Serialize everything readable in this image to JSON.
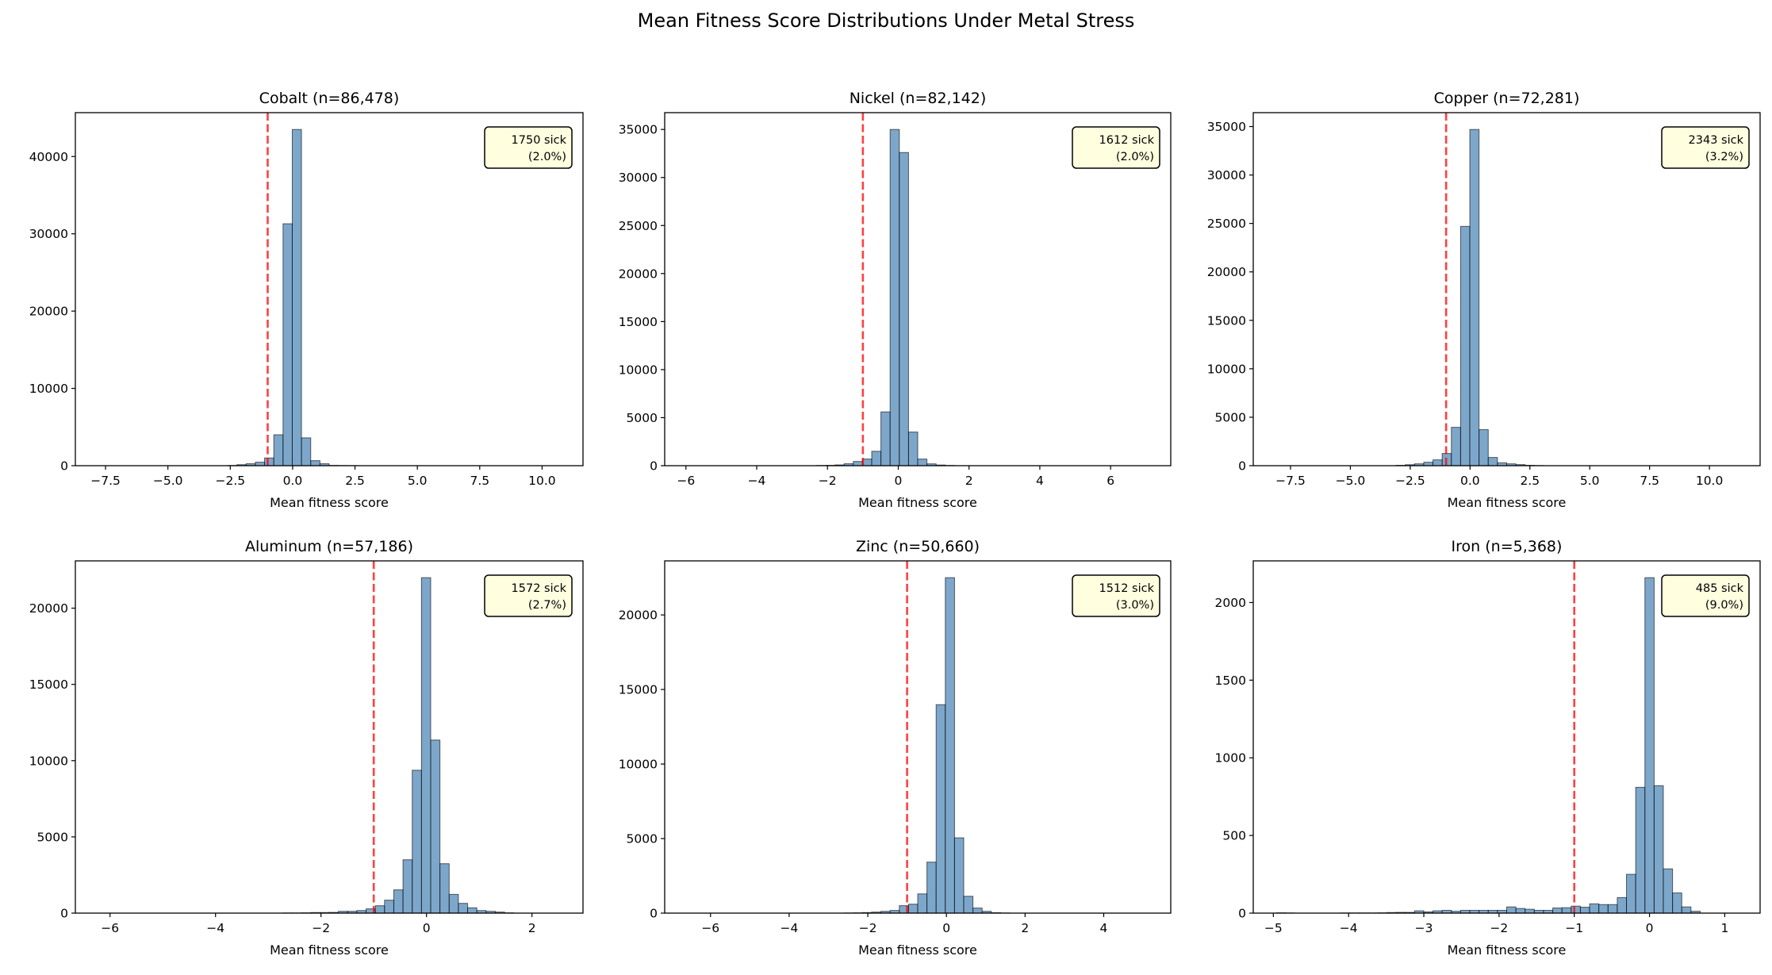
{
  "chart_data": {
    "title": "Mean Fitness Score Distributions Under Metal Stress",
    "colors": {
      "bar": "#4682b4",
      "bar_edge": "#000000",
      "threshold_line": "#ff0000",
      "annotation_box": "#ffffe0"
    },
    "panels": [
      {
        "type": "bar",
        "title": "Cobalt (n=86,478)",
        "xlabel": "Mean fitness score",
        "threshold": -1,
        "annotation": [
          "1750 sick",
          "(2.0%)"
        ],
        "bin_start": -7.785,
        "bin_width": 0.37,
        "counts": [
          0,
          0,
          0,
          0,
          0,
          0,
          0,
          0,
          0,
          0,
          0,
          0,
          0,
          0,
          30,
          130,
          250,
          450,
          1000,
          4000,
          31300,
          43500,
          3600,
          650,
          250,
          40,
          20,
          10,
          0,
          0,
          0,
          0,
          0,
          0,
          0,
          0,
          0,
          0,
          0,
          0,
          0,
          0,
          0,
          0,
          0,
          0,
          0,
          0,
          0,
          0
        ],
        "xticks": [
          -7.5,
          -5,
          -2.5,
          0,
          2.5,
          5,
          7.5,
          10
        ],
        "xtick_labels": [
          "−7.5",
          "−5.0",
          "−2.5",
          "0.0",
          "2.5",
          "5.0",
          "7.5",
          "10.0"
        ],
        "yticks": [
          0,
          10000,
          20000,
          30000,
          40000
        ],
        "ytick_labels": [
          "0",
          "10000",
          "20000",
          "30000",
          "40000"
        ]
      },
      {
        "type": "bar",
        "title": "Nickel (n=82,142)",
        "xlabel": "Mean fitness score",
        "threshold": -1,
        "annotation": [
          "1612 sick",
          "(2.0%)"
        ],
        "bin_start": -5.95,
        "bin_width": 0.26,
        "counts": [
          0,
          0,
          0,
          0,
          0,
          0,
          0,
          0,
          0,
          0,
          0,
          0,
          0,
          0,
          20,
          40,
          80,
          200,
          440,
          690,
          1500,
          5600,
          35000,
          32600,
          3500,
          690,
          190,
          70,
          25,
          0,
          0,
          0,
          0,
          0,
          0,
          0,
          0,
          0,
          0,
          0,
          0,
          0,
          0,
          0,
          0,
          0,
          0,
          0,
          0,
          0
        ],
        "xticks": [
          -6,
          -4,
          -2,
          0,
          2,
          4,
          6
        ],
        "xtick_labels": [
          "−6",
          "−4",
          "−2",
          "0",
          "2",
          "4",
          "6"
        ],
        "yticks": [
          0,
          5000,
          10000,
          15000,
          20000,
          25000,
          30000,
          35000
        ],
        "ytick_labels": [
          "0",
          "5000",
          "10000",
          "15000",
          "20000",
          "25000",
          "30000",
          "35000"
        ]
      },
      {
        "type": "bar",
        "title": "Copper (n=72,281)",
        "xlabel": "Mean fitness score",
        "threshold": -1,
        "annotation": [
          "2343 sick",
          "(3.2%)"
        ],
        "bin_start": -8.095,
        "bin_width": 0.385,
        "counts": [
          0,
          0,
          0,
          0,
          0,
          0,
          0,
          0,
          0,
          0,
          0,
          0,
          0,
          40,
          100,
          190,
          355,
          600,
          1260,
          3960,
          24700,
          34700,
          3720,
          850,
          300,
          190,
          110,
          40,
          15,
          0,
          0,
          0,
          0,
          0,
          0,
          0,
          0,
          0,
          0,
          0,
          0,
          0,
          0,
          0,
          0,
          0,
          0,
          0,
          0,
          0
        ],
        "xticks": [
          -7.5,
          -5,
          -2.5,
          0,
          2.5,
          5,
          7.5,
          10
        ],
        "xtick_labels": [
          "−7.5",
          "−5.0",
          "−2.5",
          "0.0",
          "2.5",
          "5.0",
          "7.5",
          "10.0"
        ],
        "yticks": [
          0,
          5000,
          10000,
          15000,
          20000,
          25000,
          30000,
          35000
        ],
        "ytick_labels": [
          "0",
          "5000",
          "10000",
          "15000",
          "20000",
          "25000",
          "30000",
          "35000"
        ]
      },
      {
        "type": "bar",
        "title": "Aluminum (n=57,186)",
        "xlabel": "Mean fitness score",
        "threshold": -1,
        "annotation": [
          "1572 sick",
          "(2.7%)"
        ],
        "bin_start": -6.22,
        "bin_width": 0.175,
        "counts": [
          0,
          0,
          0,
          0,
          0,
          0,
          0,
          0,
          0,
          0,
          0,
          0,
          0,
          0,
          0,
          0,
          0,
          0,
          0,
          0,
          10,
          10,
          20,
          40,
          40,
          50,
          120,
          120,
          170,
          280,
          485,
          850,
          1525,
          3500,
          9370,
          22000,
          11350,
          3240,
          1230,
          640,
          350,
          170,
          120,
          70,
          20,
          0,
          0,
          0,
          0,
          0
        ],
        "xticks": [
          -6,
          -4,
          -2,
          0,
          2
        ],
        "xtick_labels": [
          "−6",
          "−4",
          "−2",
          "0",
          "2"
        ],
        "yticks": [
          0,
          5000,
          10000,
          15000,
          20000
        ],
        "ytick_labels": [
          "0",
          "5000",
          "10000",
          "15000",
          "20000"
        ]
      },
      {
        "type": "bar",
        "title": "Zinc (n=50,660)",
        "xlabel": "Mean fitness score",
        "threshold": -1,
        "annotation": [
          "1512 sick",
          "(3.0%)"
        ],
        "bin_start": -6.58,
        "bin_width": 0.234,
        "counts": [
          0,
          0,
          0,
          0,
          0,
          0,
          0,
          0,
          0,
          0,
          0,
          0,
          0,
          0,
          0,
          0,
          0,
          10,
          20,
          40,
          70,
          120,
          180,
          500,
          600,
          1290,
          3420,
          13980,
          22500,
          5050,
          1130,
          340,
          120,
          30,
          10,
          0,
          0,
          0,
          0,
          0,
          0,
          0,
          0,
          0,
          0,
          0,
          0,
          0,
          0,
          0
        ],
        "xticks": [
          -6,
          -4,
          -2,
          0,
          2,
          4
        ],
        "xtick_labels": [
          "−6",
          "−4",
          "−2",
          "0",
          "2",
          "4"
        ],
        "yticks": [
          0,
          5000,
          10000,
          15000,
          20000
        ],
        "ytick_labels": [
          "0",
          "5000",
          "10000",
          "15000",
          "20000"
        ]
      },
      {
        "type": "bar",
        "title": "Iron (n=5,368)",
        "xlabel": "Mean fitness score",
        "threshold": -1,
        "annotation": [
          "485 sick",
          "(9.0%)"
        ],
        "bin_start": -4.961,
        "bin_width": 0.1225,
        "counts": [
          2,
          1,
          0,
          0,
          0,
          0,
          0,
          1,
          1,
          1,
          1,
          2,
          4,
          5,
          5,
          15,
          8,
          15,
          18,
          12,
          18,
          18,
          18,
          18,
          18,
          40,
          30,
          25,
          18,
          18,
          33,
          35,
          45,
          38,
          60,
          55,
          55,
          100,
          250,
          810,
          2160,
          820,
          285,
          130,
          40,
          12,
          0,
          0,
          0,
          0
        ],
        "xticks": [
          -5,
          -4,
          -3,
          -2,
          -1,
          0,
          1
        ],
        "xtick_labels": [
          "−5",
          "−4",
          "−3",
          "−2",
          "−1",
          "0",
          "1"
        ],
        "yticks": [
          0,
          500,
          1000,
          1500,
          2000
        ],
        "ytick_labels": [
          "0",
          "500",
          "1000",
          "1500",
          "2000"
        ]
      }
    ]
  }
}
